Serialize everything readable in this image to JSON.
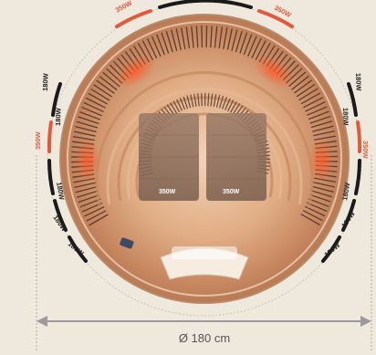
{
  "colors": {
    "background": "#efe8dd",
    "heater_black": "#1a1a1a",
    "heater_orange": "#e25a3c",
    "wood": "#d9a07a",
    "glow": "#ff6a3a",
    "dimension_line": "#9a9a9a"
  },
  "heaters": {
    "top_left": "350W",
    "top_right": "350W",
    "left_upper": "180W",
    "left_mid": "180W",
    "left_center": "350W",
    "left_lower_1": "180W",
    "left_lower_2": "180W",
    "left_bottom": "180W",
    "right_upper": "180W",
    "right_mid": "180W",
    "right_center": "350W",
    "right_lower_1": "180W",
    "right_lower_2": "180W",
    "right_bottom": "180W",
    "back_left": "350W",
    "back_right": "350W"
  },
  "dimension": {
    "label": "Ø 180 cm"
  }
}
